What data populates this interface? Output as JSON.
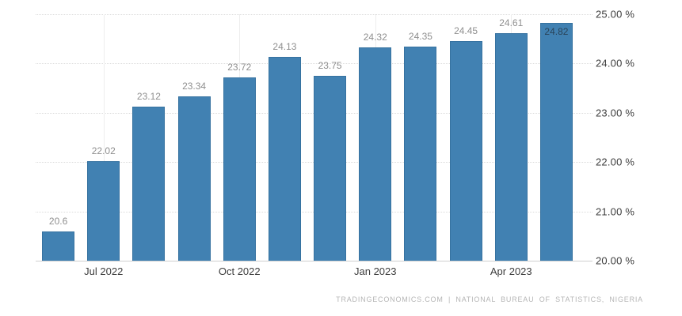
{
  "chart_data": {
    "type": "bar",
    "title": "",
    "xlabel": "",
    "ylabel": "",
    "unit": "%",
    "values": [
      20.6,
      22.02,
      23.12,
      23.34,
      23.72,
      24.13,
      23.75,
      24.32,
      24.35,
      24.45,
      24.61,
      24.82
    ],
    "bar_labels": [
      "20.6",
      "22.02",
      "23.12",
      "23.34",
      "23.72",
      "24.13",
      "23.75",
      "24.32",
      "24.35",
      "24.45",
      "24.61",
      "24.82"
    ],
    "x_ticks": [
      {
        "slot": 1,
        "label": "Jul 2022"
      },
      {
        "slot": 4,
        "label": "Oct 2022"
      },
      {
        "slot": 7,
        "label": "Jan 2023"
      },
      {
        "slot": 10,
        "label": "Apr 2023"
      }
    ],
    "y_ticks": [
      "25.00 %",
      "24.00 %",
      "23.00 %",
      "22.00 %",
      "21.00 %",
      "20.00 %"
    ],
    "ylim": [
      20,
      25
    ],
    "y_axis_position": "right",
    "grid": true,
    "legend": false,
    "bar_color": "#4181B2",
    "inside_label_indices": [
      11
    ],
    "attribution": "TRADINGECONOMICS.COM | NATIONAL BUREAU OF STATISTICS, NIGERIA"
  }
}
